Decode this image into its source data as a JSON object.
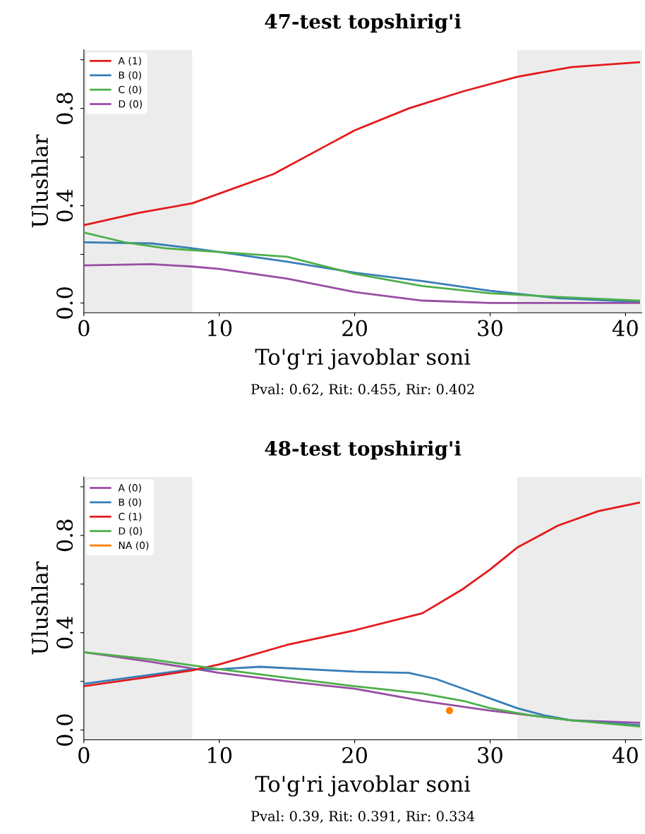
{
  "chart_data": [
    {
      "type": "line",
      "title": "47-test topshirig'i",
      "xlabel": "To'g'ri javoblar soni",
      "ylabel": "Ulushlar",
      "annotations": [
        "Pval: 0.62, Rit: 0.455, Rir: 0.402"
      ],
      "xlim": [
        0,
        41.2
      ],
      "xticks": [
        0,
        10,
        20,
        30,
        40
      ],
      "ylim": [
        -0.04,
        1.04
      ],
      "yticks": [
        {
          "value": 0,
          "label": "0.0"
        },
        {
          "value": 0.2,
          "label": null
        },
        {
          "value": 0.4,
          "label": "0.4"
        },
        {
          "value": 0.6,
          "label": null
        },
        {
          "value": 0.8,
          "label": "0.8"
        },
        {
          "value": 1.0,
          "label": null
        }
      ],
      "bands": [
        {
          "axis": "x",
          "from": 0,
          "to": 8,
          "color": "#ececec"
        },
        {
          "axis": "x",
          "from": 32,
          "to": 41.2,
          "color": "#ececec"
        }
      ],
      "legend": "top left",
      "grid": false,
      "marker": "none",
      "series": [
        {
          "name": "A (1)",
          "color": "#e41a1c",
          "x": [
            0,
            4,
            8,
            10,
            14,
            18,
            20,
            24,
            28,
            32,
            36,
            41
          ],
          "values": [
            0.32,
            0.37,
            0.41,
            0.45,
            0.53,
            0.65,
            0.71,
            0.8,
            0.87,
            0.93,
            0.97,
            0.99
          ]
        },
        {
          "name": "B (0)",
          "color": "#377eb8",
          "x": [
            0,
            5,
            8,
            10,
            15,
            20,
            25,
            30,
            35,
            41
          ],
          "values": [
            0.25,
            0.245,
            0.225,
            0.21,
            0.17,
            0.125,
            0.09,
            0.05,
            0.02,
            0.005
          ]
        },
        {
          "name": "C (0)",
          "color": "#4daf4a",
          "x": [
            0,
            3,
            6,
            10,
            15,
            20,
            25,
            30,
            35,
            41
          ],
          "values": [
            0.29,
            0.25,
            0.225,
            0.21,
            0.19,
            0.12,
            0.07,
            0.04,
            0.025,
            0.01
          ]
        },
        {
          "name": "D (0)",
          "color": "#984ea3",
          "x": [
            0,
            5,
            8,
            10,
            15,
            20,
            25,
            30,
            41
          ],
          "values": [
            0.155,
            0.16,
            0.15,
            0.14,
            0.1,
            0.045,
            0.01,
            0.0,
            0.0
          ]
        }
      ]
    },
    {
      "type": "line",
      "title": "48-test topshirig'i",
      "xlabel": "To'g'ri javoblar soni",
      "ylabel": "Ulushlar",
      "annotations": [
        "Pval: 0.39, Rit: 0.391, Rir: 0.334"
      ],
      "xlim": [
        0,
        41.2
      ],
      "xticks": [
        0,
        10,
        20,
        30,
        40
      ],
      "ylim": [
        -0.04,
        1.04
      ],
      "yticks": [
        {
          "value": 0,
          "label": "0.0"
        },
        {
          "value": 0.2,
          "label": null
        },
        {
          "value": 0.4,
          "label": "0.4"
        },
        {
          "value": 0.6,
          "label": null
        },
        {
          "value": 0.8,
          "label": "0.8"
        },
        {
          "value": 1.0,
          "label": null
        }
      ],
      "bands": [
        {
          "axis": "x",
          "from": 0,
          "to": 8,
          "color": "#ececec"
        },
        {
          "axis": "x",
          "from": 32,
          "to": 41.2,
          "color": "#ececec"
        }
      ],
      "legend": "top left",
      "grid": false,
      "marker": "none",
      "series": [
        {
          "name": "A (0)",
          "color": "#984ea3",
          "x": [
            0,
            5,
            10,
            15,
            20,
            25,
            30,
            33,
            36,
            41
          ],
          "values": [
            0.32,
            0.28,
            0.235,
            0.2,
            0.17,
            0.12,
            0.08,
            0.06,
            0.04,
            0.03
          ]
        },
        {
          "name": "B (0)",
          "color": "#377eb8",
          "x": [
            0,
            8,
            10,
            13,
            20,
            24,
            26,
            28,
            30,
            32,
            34,
            36,
            41
          ],
          "values": [
            0.19,
            0.25,
            0.25,
            0.26,
            0.24,
            0.235,
            0.21,
            0.17,
            0.13,
            0.09,
            0.06,
            0.04,
            0.02
          ]
        },
        {
          "name": "C (1)",
          "color": "#e41a1c",
          "x": [
            0,
            5,
            8,
            10,
            15,
            20,
            25,
            28,
            30,
            32,
            35,
            38,
            41
          ],
          "values": [
            0.18,
            0.22,
            0.245,
            0.27,
            0.35,
            0.41,
            0.48,
            0.58,
            0.66,
            0.75,
            0.84,
            0.9,
            0.935
          ]
        },
        {
          "name": "D (0)",
          "color": "#4daf4a",
          "x": [
            0,
            5,
            10,
            15,
            20,
            25,
            28,
            30,
            33,
            36,
            41
          ],
          "values": [
            0.32,
            0.29,
            0.25,
            0.215,
            0.18,
            0.15,
            0.12,
            0.09,
            0.06,
            0.04,
            0.015
          ]
        },
        {
          "name": "NA (0)",
          "type": "scatter",
          "marker": "circle",
          "color": "#ff7f00",
          "x": [
            27
          ],
          "values": [
            0.08
          ]
        }
      ]
    }
  ]
}
